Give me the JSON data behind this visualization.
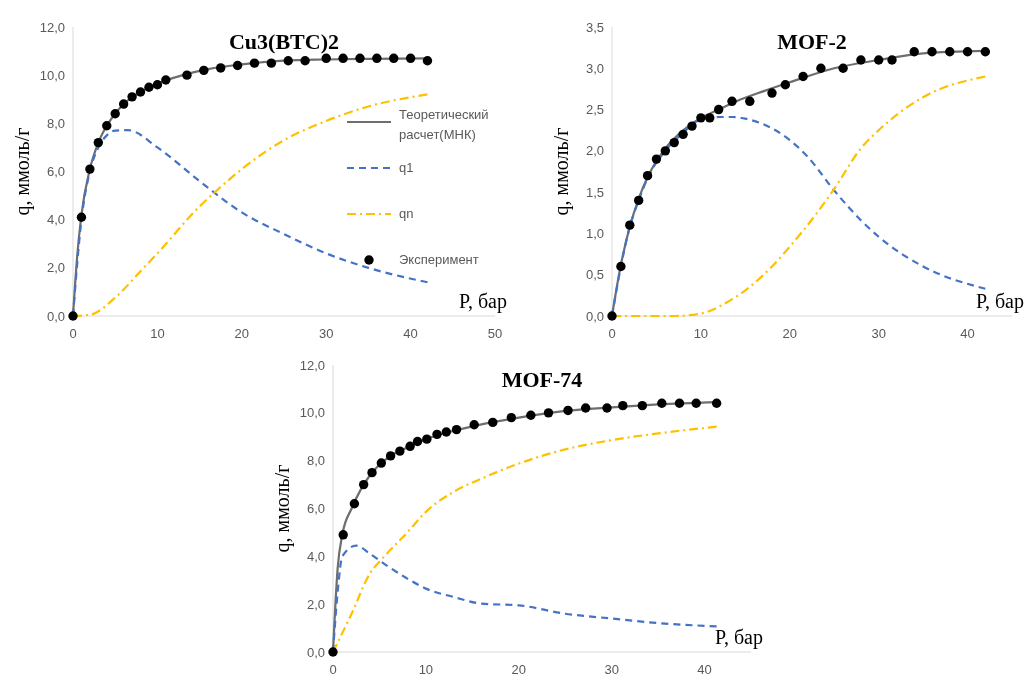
{
  "chart_data": [
    {
      "type": "line",
      "title": "Cu3(BTC)2",
      "xlabel": "P, бар",
      "ylabel": "q, ммоль/г",
      "xlim": [
        0,
        50
      ],
      "xticks": [
        0,
        10,
        20,
        30,
        40,
        50
      ],
      "ylim": [
        0,
        12
      ],
      "yticks": [
        {
          "value": 0,
          "label": "0,0"
        },
        {
          "value": 2,
          "label": "2,0"
        },
        {
          "value": 4,
          "label": "4,0"
        },
        {
          "value": 6,
          "label": "6,0"
        },
        {
          "value": 8,
          "label": "8,0"
        },
        {
          "value": 10,
          "label": "10,0"
        },
        {
          "value": 12,
          "label": "12,0"
        }
      ],
      "grid": false,
      "legend": "right",
      "series": [
        {
          "name": "Теоретический расчет(МНК)",
          "type": "line",
          "line_style": "solid",
          "color": "#6e6e6e",
          "x": [
            0,
            0.5,
            1,
            2,
            3,
            4,
            5,
            6,
            8,
            10,
            13,
            16,
            20,
            25,
            30,
            35,
            42
          ],
          "values": [
            0,
            2.5,
            4.2,
            6.1,
            7.2,
            7.9,
            8.4,
            8.8,
            9.3,
            9.65,
            10.0,
            10.25,
            10.45,
            10.6,
            10.65,
            10.68,
            10.7
          ]
        },
        {
          "name": "q1",
          "type": "line",
          "line_style": "dashed",
          "color": "#4472c4",
          "x": [
            0,
            1,
            2,
            3,
            4,
            5,
            6.5,
            10,
            15,
            20,
            25,
            30,
            35,
            42
          ],
          "values": [
            0,
            4.0,
            6.0,
            7.0,
            7.5,
            7.7,
            7.72,
            7.0,
            5.6,
            4.3,
            3.4,
            2.6,
            2.0,
            1.4
          ]
        },
        {
          "name": "qn",
          "type": "line",
          "line_style": "dashdot",
          "color": "#ffc000",
          "x": [
            0,
            2,
            5,
            8,
            10,
            15,
            17,
            20,
            25,
            30,
            35,
            42
          ],
          "values": [
            0,
            0.05,
            0.76,
            1.86,
            2.6,
            4.55,
            5.2,
            6.1,
            7.3,
            8.1,
            8.7,
            9.2
          ]
        },
        {
          "name": "Эксперимент",
          "type": "scatter",
          "marker": "circle",
          "color": "#000000",
          "x": [
            0,
            1,
            2,
            3,
            4,
            5,
            6,
            7,
            8,
            9,
            10,
            11,
            13.5,
            15.5,
            17.5,
            19.5,
            21.5,
            23.5,
            25.5,
            27.5,
            30,
            32,
            34,
            36,
            38,
            40,
            42
          ],
          "values": [
            0,
            4.1,
            6.1,
            7.2,
            7.9,
            8.4,
            8.8,
            9.1,
            9.3,
            9.5,
            9.6,
            9.8,
            10.0,
            10.2,
            10.3,
            10.4,
            10.5,
            10.5,
            10.6,
            10.6,
            10.7,
            10.7,
            10.7,
            10.7,
            10.7,
            10.7,
            10.6
          ]
        }
      ]
    },
    {
      "type": "line",
      "title": "MOF-2",
      "xlabel": "P, бар",
      "ylabel": "q, ммоль/г",
      "xlim": [
        0,
        45
      ],
      "xticks": [
        0,
        10,
        20,
        30,
        40
      ],
      "ylim": [
        0,
        3.5
      ],
      "yticks": [
        {
          "value": 0,
          "label": "0,0"
        },
        {
          "value": 0.5,
          "label": "0,5"
        },
        {
          "value": 1,
          "label": "1,0"
        },
        {
          "value": 1.5,
          "label": "1,5"
        },
        {
          "value": 2,
          "label": "2,0"
        },
        {
          "value": 2.5,
          "label": "2,5"
        },
        {
          "value": 3,
          "label": "3,0"
        },
        {
          "value": 3.5,
          "label": "3,5"
        }
      ],
      "grid": false,
      "series": [
        {
          "type": "line",
          "line_style": "solid",
          "color": "#6e6e6e",
          "x": [
            0,
            1,
            2,
            3,
            4,
            6,
            8,
            10,
            12,
            14,
            17,
            20,
            25,
            30,
            35,
            42
          ],
          "values": [
            0,
            0.62,
            1.08,
            1.42,
            1.68,
            2.03,
            2.25,
            2.4,
            2.5,
            2.6,
            2.72,
            2.83,
            3.0,
            3.1,
            3.18,
            3.21
          ]
        },
        {
          "type": "line",
          "line_style": "dashed",
          "color": "#4472c4",
          "x": [
            0,
            1,
            2,
            3,
            4,
            6,
            8,
            10,
            12,
            13.5,
            15,
            20,
            22,
            25,
            28,
            30,
            35,
            42
          ],
          "values": [
            0,
            0.6,
            1.08,
            1.4,
            1.67,
            2.0,
            2.22,
            2.38,
            2.41,
            2.41,
            2.39,
            2.13,
            1.93,
            1.52,
            1.16,
            0.96,
            0.6,
            0.33
          ]
        },
        {
          "type": "line",
          "line_style": "dashdot",
          "color": "#ffc000",
          "x": [
            0,
            7,
            10,
            13,
            15,
            18,
            20,
            23,
            25,
            28,
            30,
            35,
            42
          ],
          "values": [
            0,
            0,
            0.03,
            0.17,
            0.31,
            0.6,
            0.84,
            1.24,
            1.54,
            2.03,
            2.25,
            2.65,
            2.9
          ]
        },
        {
          "type": "scatter",
          "marker": "circle",
          "color": "#000000",
          "x": [
            0,
            1,
            2,
            3,
            4,
            5,
            6,
            7,
            8,
            9,
            10,
            11,
            12,
            13.5,
            15.5,
            18,
            19.5,
            21.5,
            23.5,
            26,
            28,
            30,
            31.5,
            34,
            36,
            38,
            40,
            42
          ],
          "values": [
            0,
            0.6,
            1.1,
            1.4,
            1.7,
            1.9,
            2.0,
            2.1,
            2.2,
            2.3,
            2.4,
            2.4,
            2.5,
            2.6,
            2.6,
            2.7,
            2.8,
            2.9,
            3.0,
            3.0,
            3.1,
            3.1,
            3.1,
            3.2,
            3.2,
            3.2,
            3.2,
            3.2
          ]
        }
      ]
    },
    {
      "type": "line",
      "title": "MOF-74",
      "xlabel": "P, бар",
      "ylabel": "q, ммоль/г",
      "xlim": [
        0,
        45
      ],
      "xticks": [
        0,
        10,
        20,
        30,
        40
      ],
      "ylim": [
        0,
        12
      ],
      "yticks": [
        {
          "value": 0,
          "label": "0,0"
        },
        {
          "value": 2,
          "label": "2,0"
        },
        {
          "value": 4,
          "label": "4,0"
        },
        {
          "value": 6,
          "label": "6,0"
        },
        {
          "value": 8,
          "label": "8,0"
        },
        {
          "value": 10,
          "label": "10,0"
        },
        {
          "value": 12,
          "label": "12,0"
        }
      ],
      "grid": false,
      "series": [
        {
          "type": "line",
          "line_style": "solid",
          "color": "#6e6e6e",
          "x": [
            0,
            0.5,
            1,
            2,
            3,
            4,
            6,
            8,
            10,
            13,
            16,
            20,
            25,
            30,
            35,
            41.3
          ],
          "values": [
            0,
            3.5,
            4.9,
            6.0,
            6.8,
            7.4,
            8.15,
            8.55,
            8.9,
            9.25,
            9.52,
            9.8,
            10.08,
            10.23,
            10.35,
            10.45
          ]
        },
        {
          "type": "line",
          "line_style": "dashed",
          "color": "#4472c4",
          "x": [
            0,
            0.5,
            1,
            2.5,
            4,
            6,
            8,
            10,
            13,
            16,
            20,
            25,
            30,
            35,
            41.3
          ],
          "values": [
            0,
            2.5,
            4.0,
            4.45,
            4.1,
            3.56,
            3.07,
            2.65,
            2.3,
            2.02,
            1.95,
            1.6,
            1.4,
            1.21,
            1.07
          ]
        },
        {
          "type": "line",
          "line_style": "dashdot",
          "color": "#ffc000",
          "x": [
            0,
            2,
            4,
            5.3,
            8,
            10,
            13,
            16,
            20,
            25,
            30,
            35,
            41.3
          ],
          "values": [
            0,
            1.6,
            3.3,
            3.9,
            5.0,
            5.86,
            6.7,
            7.25,
            7.88,
            8.47,
            8.86,
            9.14,
            9.42
          ]
        },
        {
          "type": "scatter",
          "marker": "circle",
          "color": "#000000",
          "x": [
            0,
            1.1,
            2.3,
            3.3,
            4.2,
            5.2,
            6.2,
            7.2,
            8.3,
            9.1,
            10.1,
            11.2,
            12.2,
            13.3,
            15.2,
            17.2,
            19.2,
            21.3,
            23.2,
            25.3,
            27.2,
            29.5,
            31.2,
            33.3,
            35.4,
            37.3,
            39.1,
            41.3
          ],
          "values": [
            0,
            4.9,
            6.2,
            7.0,
            7.5,
            7.9,
            8.2,
            8.4,
            8.6,
            8.8,
            8.9,
            9.1,
            9.2,
            9.3,
            9.5,
            9.6,
            9.8,
            9.9,
            10.0,
            10.1,
            10.2,
            10.2,
            10.3,
            10.3,
            10.4,
            10.4,
            10.4,
            10.4
          ]
        }
      ]
    }
  ]
}
